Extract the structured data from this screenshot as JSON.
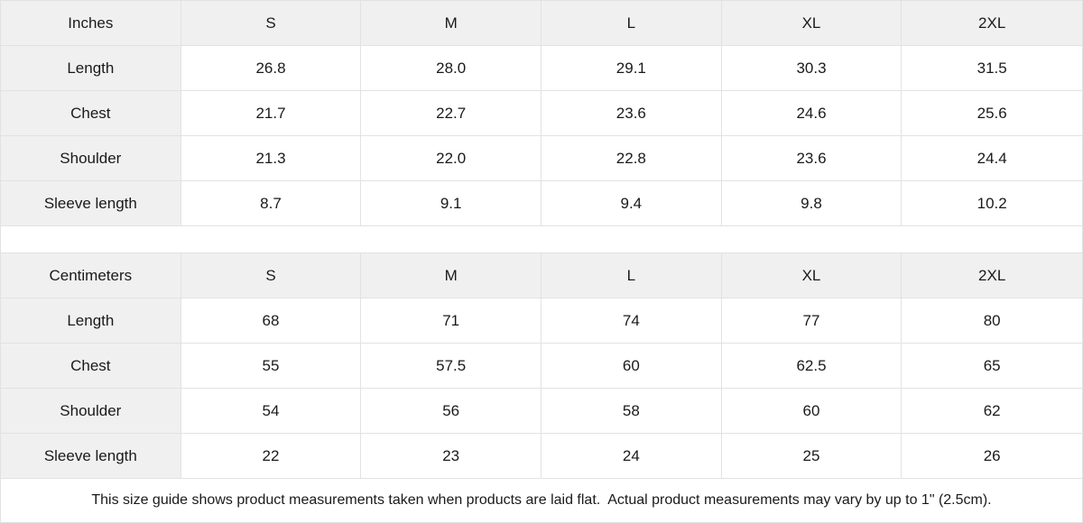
{
  "colors": {
    "header_bg": "#f0f0f0",
    "border": "#e2e2e2",
    "text": "#1a1a1a"
  },
  "tables": [
    {
      "unit_label": "Inches",
      "sizes": [
        "S",
        "M",
        "L",
        "XL",
        "2XL"
      ],
      "rows": [
        {
          "label": "Length",
          "values": [
            "26.8",
            "28.0",
            "29.1",
            "30.3",
            "31.5"
          ]
        },
        {
          "label": "Chest",
          "values": [
            "21.7",
            "22.7",
            "23.6",
            "24.6",
            "25.6"
          ]
        },
        {
          "label": "Shoulder",
          "values": [
            "21.3",
            "22.0",
            "22.8",
            "23.6",
            "24.4"
          ]
        },
        {
          "label": "Sleeve length",
          "values": [
            "8.7",
            "9.1",
            "9.4",
            "9.8",
            "10.2"
          ]
        }
      ]
    },
    {
      "unit_label": "Centimeters",
      "sizes": [
        "S",
        "M",
        "L",
        "XL",
        "2XL"
      ],
      "rows": [
        {
          "label": "Length",
          "values": [
            "68",
            "71",
            "74",
            "77",
            "80"
          ]
        },
        {
          "label": "Chest",
          "values": [
            "55",
            "57.5",
            "60",
            "62.5",
            "65"
          ]
        },
        {
          "label": "Shoulder",
          "values": [
            "54",
            "56",
            "58",
            "60",
            "62"
          ]
        },
        {
          "label": "Sleeve length",
          "values": [
            "22",
            "23",
            "24",
            "25",
            "26"
          ]
        }
      ]
    }
  ],
  "footer": {
    "note": "This size guide shows product measurements taken when products are laid flat.  Actual product measurements may vary by up to 1\" (2.5cm)."
  }
}
